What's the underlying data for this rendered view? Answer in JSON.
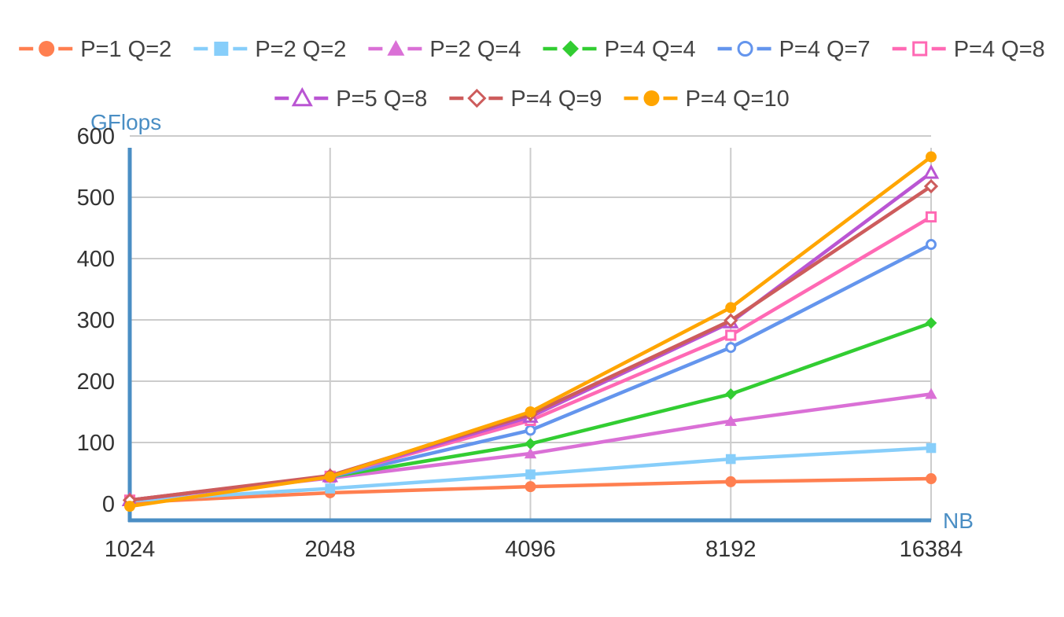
{
  "chart_data": {
    "type": "line",
    "title": "",
    "xlabel": "NB",
    "ylabel": "GFlops",
    "x_scale": "log2",
    "categories": [
      "1024",
      "2048",
      "4096",
      "8192",
      "16384"
    ],
    "x": [
      1024,
      2048,
      4096,
      8192,
      16384
    ],
    "ylim": [
      -10,
      620
    ],
    "yticks": [
      0,
      100,
      200,
      300,
      400,
      500,
      600
    ],
    "grid": true,
    "legend_position": "top",
    "axis_color": "#4a8ec4",
    "series": [
      {
        "name": "P=1 Q=2",
        "color": "#ff7f50",
        "marker": "circle",
        "values": [
          2,
          18,
          28,
          36,
          41
        ]
      },
      {
        "name": "P=2 Q=2",
        "color": "#87cefa",
        "marker": "square",
        "values": [
          5,
          25,
          48,
          73,
          91
        ]
      },
      {
        "name": "P=2 Q=4",
        "color": "#da70d6",
        "marker": "triangle",
        "values": [
          6,
          42,
          82,
          135,
          179
        ]
      },
      {
        "name": "P=4 Q=4",
        "color": "#32cd32",
        "marker": "diamond",
        "values": [
          6,
          44,
          98,
          179,
          295
        ]
      },
      {
        "name": "P=4 Q=7",
        "color": "#6495ed",
        "marker": "circle-open",
        "values": [
          6,
          44,
          120,
          255,
          423
        ]
      },
      {
        "name": "P=4 Q=8",
        "color": "#ff69b4",
        "marker": "square-open",
        "values": [
          6,
          45,
          136,
          275,
          468
        ]
      },
      {
        "name": "P=5 Q=8",
        "color": "#ba55d3",
        "marker": "triangle-open",
        "values": [
          6,
          45,
          142,
          296,
          540
        ]
      },
      {
        "name": "P=4 Q=9",
        "color": "#cd5c5c",
        "marker": "diamond-open",
        "values": [
          6,
          46,
          146,
          299,
          518
        ]
      },
      {
        "name": "P=4 Q=10",
        "color": "#ffa500",
        "marker": "circle",
        "values": [
          -4,
          44,
          150,
          320,
          566
        ]
      }
    ]
  }
}
